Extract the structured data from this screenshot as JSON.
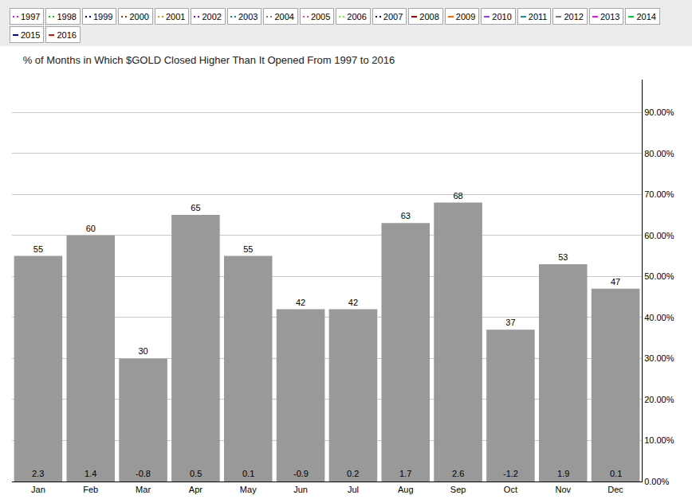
{
  "chart_data": {
    "type": "bar",
    "title": "% of Months in Which $GOLD Closed Higher Than It Opened From 1997 to 2016",
    "categories": [
      "Jan",
      "Feb",
      "Mar",
      "Apr",
      "May",
      "Jun",
      "Jul",
      "Aug",
      "Sep",
      "Oct",
      "Nov",
      "Dec"
    ],
    "values": [
      55,
      60,
      30,
      65,
      55,
      42,
      42,
      63,
      68,
      37,
      53,
      47
    ],
    "avg_change": [
      2.3,
      1.4,
      -0.8,
      0.5,
      0.1,
      -0.9,
      0.2,
      1.7,
      2.6,
      -1.2,
      1.9,
      0.1
    ],
    "color": "#999999",
    "ylim": [
      0,
      98
    ],
    "yticks": [
      {
        "value": 0,
        "label": "0.00%"
      },
      {
        "value": 10,
        "label": "10.00%"
      },
      {
        "value": 20,
        "label": "20.00%"
      },
      {
        "value": 30,
        "label": "30.00%"
      },
      {
        "value": 40,
        "label": "40.00%"
      },
      {
        "value": 50,
        "label": "50.00%"
      },
      {
        "value": 60,
        "label": "60.00%"
      },
      {
        "value": 70,
        "label": "70.00%"
      },
      {
        "value": 80,
        "label": "80.00%"
      },
      {
        "value": 90,
        "label": "90.00%"
      }
    ],
    "grid": true,
    "data_labels": true,
    "legend_entries": [
      {
        "name": "1997",
        "color": "#ff00ff",
        "line_style": "dotted"
      },
      {
        "name": "1998",
        "color": "#00cc00",
        "line_style": "dotted"
      },
      {
        "name": "1999",
        "color": "#000099",
        "line_style": "dotted"
      },
      {
        "name": "2000",
        "color": "#993300",
        "line_style": "dotted"
      },
      {
        "name": "2001",
        "color": "#ff8800",
        "line_style": "dotted"
      },
      {
        "name": "2002",
        "color": "#9900cc",
        "line_style": "dotted"
      },
      {
        "name": "2003",
        "color": "#008899",
        "line_style": "dotted"
      },
      {
        "name": "2004",
        "color": "#777777",
        "line_style": "dotted"
      },
      {
        "name": "2005",
        "color": "#ff33cc",
        "line_style": "dotted"
      },
      {
        "name": "2006",
        "color": "#66ff33",
        "line_style": "dotted"
      },
      {
        "name": "2007",
        "color": "#000066",
        "line_style": "dotted"
      },
      {
        "name": "2008",
        "color": "#990000",
        "line_style": "solid"
      },
      {
        "name": "2009",
        "color": "#ff6600",
        "line_style": "solid"
      },
      {
        "name": "2010",
        "color": "#9933ff",
        "line_style": "solid"
      },
      {
        "name": "2011",
        "color": "#0099aa",
        "line_style": "solid"
      },
      {
        "name": "2012",
        "color": "#777777",
        "line_style": "solid"
      },
      {
        "name": "2013",
        "color": "#ff00ff",
        "line_style": "solid"
      },
      {
        "name": "2014",
        "color": "#00cc33",
        "line_style": "solid"
      },
      {
        "name": "2015",
        "color": "#0000cc",
        "line_style": "solid"
      },
      {
        "name": "2016",
        "color": "#ff0000",
        "line_style": "solid"
      }
    ]
  }
}
